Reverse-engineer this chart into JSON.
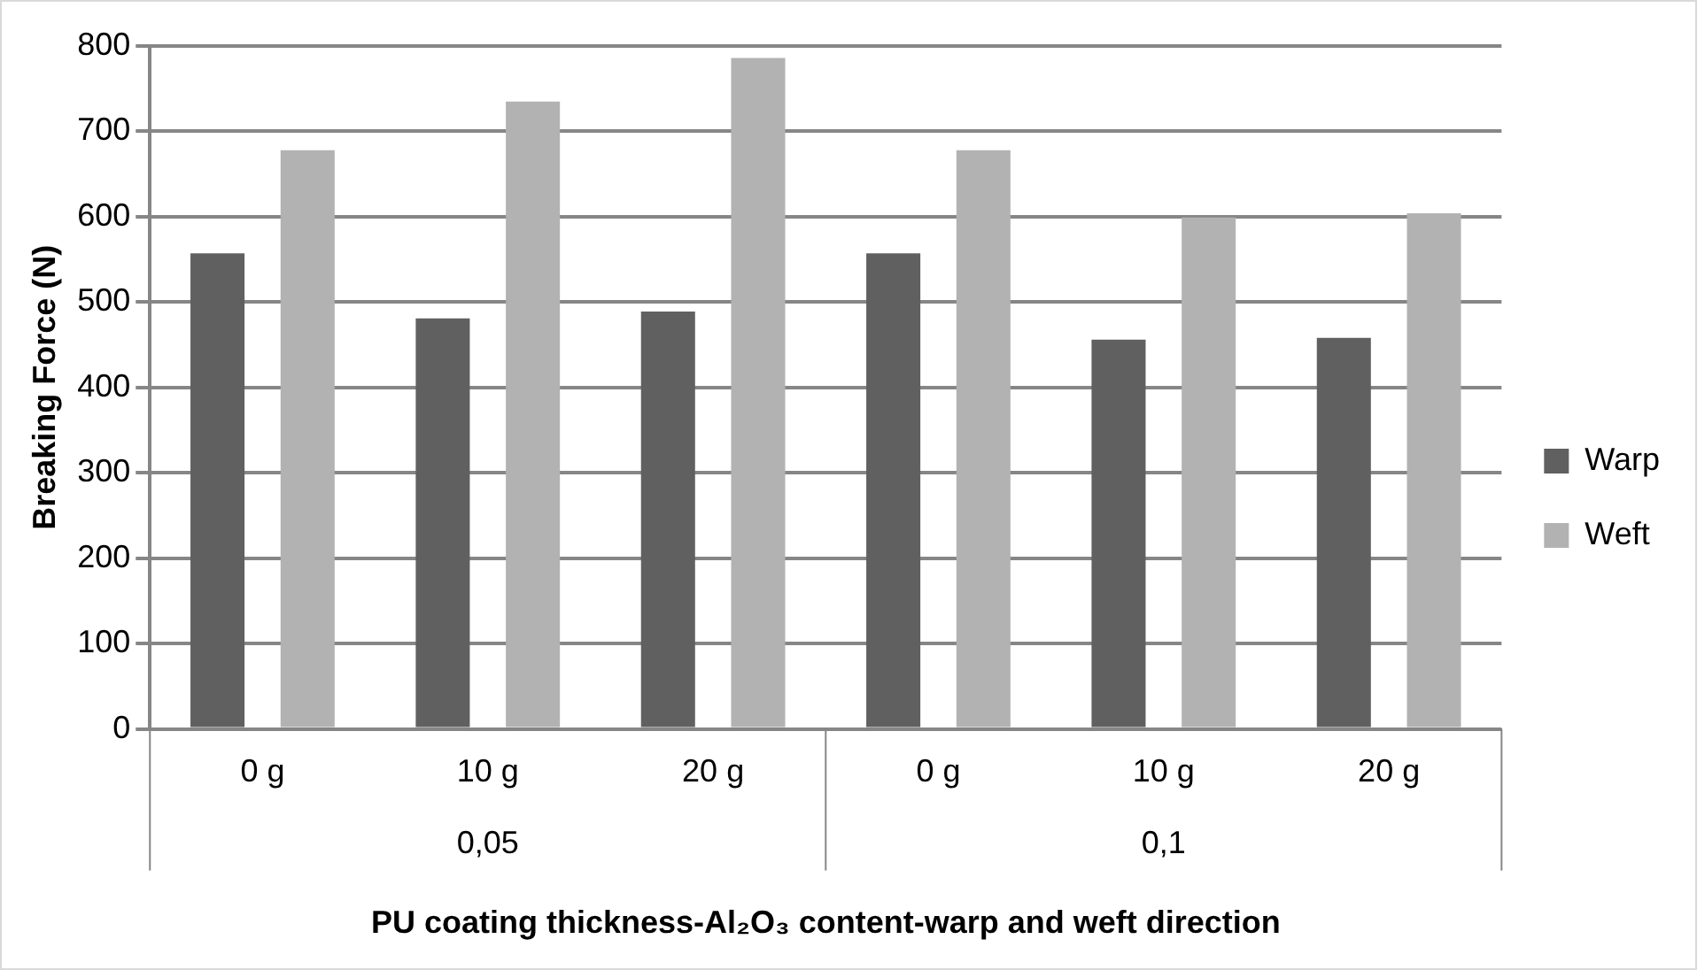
{
  "chart_data": {
    "type": "bar",
    "ylabel": "Breaking Force (N)",
    "xlabel": "PU coating thickness-Al₂O₃ content-warp and weft direction",
    "categories": [
      "0 g",
      "10 g",
      "20 g",
      "0 g",
      "10 g",
      "20 g"
    ],
    "series": [
      {
        "name": "Warp",
        "color": "#606060",
        "values": [
          557,
          481,
          489,
          557,
          456,
          458
        ]
      },
      {
        "name": "Weft",
        "color": "#b2b2b2",
        "values": [
          678,
          735,
          786,
          678,
          599,
          604
        ]
      }
    ],
    "annotations": [
      "0,05",
      "0,1"
    ],
    "ylim": [
      0,
      800
    ],
    "yticks": [
      0,
      100,
      200,
      300,
      400,
      500,
      600,
      700,
      800
    ],
    "grid": "y",
    "legend": "right"
  }
}
